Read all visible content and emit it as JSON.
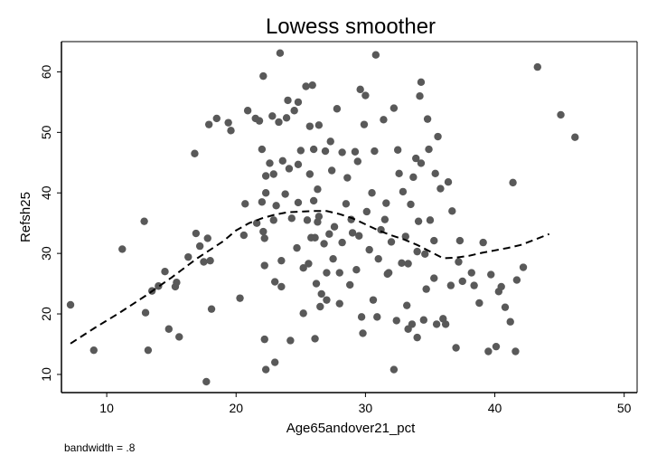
{
  "chart_data": {
    "type": "scatter",
    "title": "Lowess smoother",
    "xlabel": "Age65andover21_pct",
    "ylabel": "Refsh25",
    "note": "bandwidth = .8",
    "xlim": [
      6.5,
      51
    ],
    "ylim": [
      7,
      65
    ],
    "xticks": [
      10,
      20,
      30,
      40,
      50
    ],
    "yticks": [
      10,
      20,
      30,
      40,
      50,
      60
    ],
    "grid": false,
    "legend": "none",
    "marker_color": "#595959",
    "line_color": "#000000",
    "points": [
      [
        7.2,
        21.5
      ],
      [
        9.0,
        14.0
      ],
      [
        11.2,
        30.7
      ],
      [
        12.9,
        35.3
      ],
      [
        13.0,
        20.2
      ],
      [
        13.2,
        14.0
      ],
      [
        13.5,
        23.8
      ],
      [
        14.0,
        24.6
      ],
      [
        14.5,
        27.0
      ],
      [
        14.8,
        17.5
      ],
      [
        15.3,
        24.5
      ],
      [
        15.4,
        25.2
      ],
      [
        15.6,
        16.2
      ],
      [
        16.3,
        29.4
      ],
      [
        16.8,
        46.5
      ],
      [
        16.9,
        33.3
      ],
      [
        17.2,
        31.2
      ],
      [
        17.5,
        28.6
      ],
      [
        17.7,
        8.8
      ],
      [
        17.8,
        32.5
      ],
      [
        17.9,
        51.3
      ],
      [
        18.0,
        28.8
      ],
      [
        18.1,
        20.8
      ],
      [
        18.5,
        52.3
      ],
      [
        19.4,
        51.6
      ],
      [
        19.6,
        50.3
      ],
      [
        20.3,
        22.6
      ],
      [
        20.6,
        33.0
      ],
      [
        20.7,
        38.2
      ],
      [
        20.9,
        53.6
      ],
      [
        21.5,
        52.3
      ],
      [
        21.6,
        35.0
      ],
      [
        22.0,
        38.5
      ],
      [
        21.8,
        51.9
      ],
      [
        22.0,
        47.2
      ],
      [
        22.1,
        33.6
      ],
      [
        22.1,
        59.3
      ],
      [
        22.2,
        32.5
      ],
      [
        22.2,
        28.0
      ],
      [
        22.3,
        42.8
      ],
      [
        22.3,
        40.0
      ],
      [
        22.2,
        15.8
      ],
      [
        22.3,
        10.8
      ],
      [
        22.6,
        44.9
      ],
      [
        22.8,
        52.7
      ],
      [
        22.9,
        43.1
      ],
      [
        22.9,
        35.5
      ],
      [
        23.0,
        12.0
      ],
      [
        23.0,
        25.3
      ],
      [
        23.1,
        37.9
      ],
      [
        23.3,
        51.7
      ],
      [
        23.4,
        63.1
      ],
      [
        23.5,
        28.8
      ],
      [
        23.6,
        45.3
      ],
      [
        23.5,
        24.5
      ],
      [
        23.8,
        39.8
      ],
      [
        23.9,
        52.4
      ],
      [
        24.0,
        55.3
      ],
      [
        24.2,
        15.6
      ],
      [
        24.1,
        44.0
      ],
      [
        24.3,
        35.8
      ],
      [
        24.5,
        53.6
      ],
      [
        24.7,
        30.9
      ],
      [
        24.8,
        55.0
      ],
      [
        24.8,
        44.7
      ],
      [
        24.8,
        38.4
      ],
      [
        25.0,
        47.0
      ],
      [
        25.2,
        27.6
      ],
      [
        25.2,
        20.1
      ],
      [
        25.4,
        57.6
      ],
      [
        25.5,
        35.5
      ],
      [
        25.6,
        28.3
      ],
      [
        25.7,
        43.1
      ],
      [
        25.7,
        51.0
      ],
      [
        25.8,
        32.6
      ],
      [
        25.9,
        57.8
      ],
      [
        26.0,
        47.2
      ],
      [
        26.0,
        38.7
      ],
      [
        26.1,
        32.6
      ],
      [
        26.1,
        15.9
      ],
      [
        26.2,
        25.0
      ],
      [
        26.3,
        40.6
      ],
      [
        26.3,
        35.2
      ],
      [
        26.4,
        51.2
      ],
      [
        26.4,
        36.1
      ],
      [
        26.5,
        21.2
      ],
      [
        26.6,
        23.3
      ],
      [
        26.8,
        31.6
      ],
      [
        26.9,
        46.9
      ],
      [
        27.0,
        26.8
      ],
      [
        27.0,
        22.3
      ],
      [
        27.2,
        33.2
      ],
      [
        27.3,
        48.5
      ],
      [
        27.4,
        43.7
      ],
      [
        27.5,
        29.1
      ],
      [
        27.6,
        34.4
      ],
      [
        27.8,
        53.9
      ],
      [
        28.0,
        26.8
      ],
      [
        28.0,
        21.7
      ],
      [
        28.2,
        31.8
      ],
      [
        28.2,
        46.7
      ],
      [
        28.5,
        38.2
      ],
      [
        28.6,
        42.5
      ],
      [
        28.8,
        24.8
      ],
      [
        28.9,
        35.6
      ],
      [
        29.0,
        33.4
      ],
      [
        29.2,
        46.8
      ],
      [
        29.3,
        27.3
      ],
      [
        29.4,
        45.2
      ],
      [
        29.5,
        32.9
      ],
      [
        29.6,
        57.1
      ],
      [
        29.7,
        19.5
      ],
      [
        29.8,
        16.8
      ],
      [
        29.9,
        51.3
      ],
      [
        30.0,
        56.1
      ],
      [
        30.1,
        36.9
      ],
      [
        30.3,
        30.6
      ],
      [
        30.5,
        40.0
      ],
      [
        30.6,
        22.3
      ],
      [
        30.7,
        46.9
      ],
      [
        30.8,
        62.8
      ],
      [
        30.9,
        19.5
      ],
      [
        31.0,
        29.1
      ],
      [
        31.2,
        33.9
      ],
      [
        31.4,
        52.1
      ],
      [
        31.5,
        35.6
      ],
      [
        31.6,
        38.3
      ],
      [
        31.7,
        26.6
      ],
      [
        31.8,
        26.8
      ],
      [
        32.0,
        31.9
      ],
      [
        32.2,
        54.0
      ],
      [
        32.2,
        10.8
      ],
      [
        32.4,
        18.9
      ],
      [
        32.5,
        47.1
      ],
      [
        32.6,
        43.2
      ],
      [
        32.8,
        28.4
      ],
      [
        32.9,
        40.2
      ],
      [
        33.1,
        32.8
      ],
      [
        33.2,
        21.4
      ],
      [
        33.3,
        17.5
      ],
      [
        33.3,
        28.3
      ],
      [
        33.5,
        38.1
      ],
      [
        33.6,
        18.3
      ],
      [
        33.7,
        42.6
      ],
      [
        33.9,
        45.7
      ],
      [
        34.0,
        16.1
      ],
      [
        34.0,
        30.3
      ],
      [
        34.1,
        35.3
      ],
      [
        34.2,
        56.0
      ],
      [
        34.3,
        44.9
      ],
      [
        34.3,
        58.3
      ],
      [
        34.5,
        19.0
      ],
      [
        34.6,
        29.9
      ],
      [
        34.7,
        24.1
      ],
      [
        34.8,
        52.2
      ],
      [
        34.9,
        47.2
      ],
      [
        35.0,
        35.5
      ],
      [
        35.3,
        25.9
      ],
      [
        35.3,
        32.1
      ],
      [
        35.4,
        43.2
      ],
      [
        35.5,
        18.3
      ],
      [
        35.6,
        49.3
      ],
      [
        35.8,
        40.7
      ],
      [
        36.0,
        19.2
      ],
      [
        36.2,
        18.3
      ],
      [
        36.4,
        41.8
      ],
      [
        36.6,
        24.7
      ],
      [
        36.7,
        37.0
      ],
      [
        37.0,
        14.4
      ],
      [
        37.2,
        28.6
      ],
      [
        37.3,
        32.1
      ],
      [
        37.5,
        25.4
      ],
      [
        38.2,
        26.8
      ],
      [
        38.4,
        24.7
      ],
      [
        38.8,
        21.8
      ],
      [
        39.1,
        31.8
      ],
      [
        39.5,
        13.8
      ],
      [
        39.7,
        26.5
      ],
      [
        40.1,
        14.6
      ],
      [
        40.3,
        23.7
      ],
      [
        40.5,
        24.5
      ],
      [
        40.8,
        21.1
      ],
      [
        41.2,
        18.7
      ],
      [
        41.4,
        41.7
      ],
      [
        41.6,
        13.8
      ],
      [
        42.2,
        27.7
      ],
      [
        41.7,
        25.6
      ],
      [
        43.3,
        60.8
      ],
      [
        45.1,
        52.9
      ],
      [
        46.2,
        49.2
      ]
    ],
    "lowess": [
      [
        7.2,
        15.1
      ],
      [
        9.0,
        17.6
      ],
      [
        11.0,
        20.2
      ],
      [
        13.0,
        23.0
      ],
      [
        15.0,
        26.0
      ],
      [
        17.0,
        29.2
      ],
      [
        19.0,
        32.0
      ],
      [
        20.0,
        33.8
      ],
      [
        21.0,
        35.0
      ],
      [
        22.0,
        35.8
      ],
      [
        23.0,
        36.4
      ],
      [
        24.0,
        36.8
      ],
      [
        25.0,
        36.9
      ],
      [
        26.0,
        37.0
      ],
      [
        27.0,
        37.0
      ],
      [
        28.0,
        36.5
      ],
      [
        29.0,
        35.8
      ],
      [
        30.0,
        34.8
      ],
      [
        31.0,
        33.8
      ],
      [
        32.0,
        33.0
      ],
      [
        33.0,
        32.3
      ],
      [
        34.0,
        31.4
      ],
      [
        35.0,
        30.3
      ],
      [
        36.0,
        29.2
      ],
      [
        37.0,
        29.3
      ],
      [
        38.0,
        29.6
      ],
      [
        39.0,
        30.1
      ],
      [
        40.0,
        30.5
      ],
      [
        41.0,
        30.9
      ],
      [
        42.0,
        31.4
      ],
      [
        43.0,
        32.2
      ],
      [
        44.2,
        33.2
      ]
    ]
  }
}
